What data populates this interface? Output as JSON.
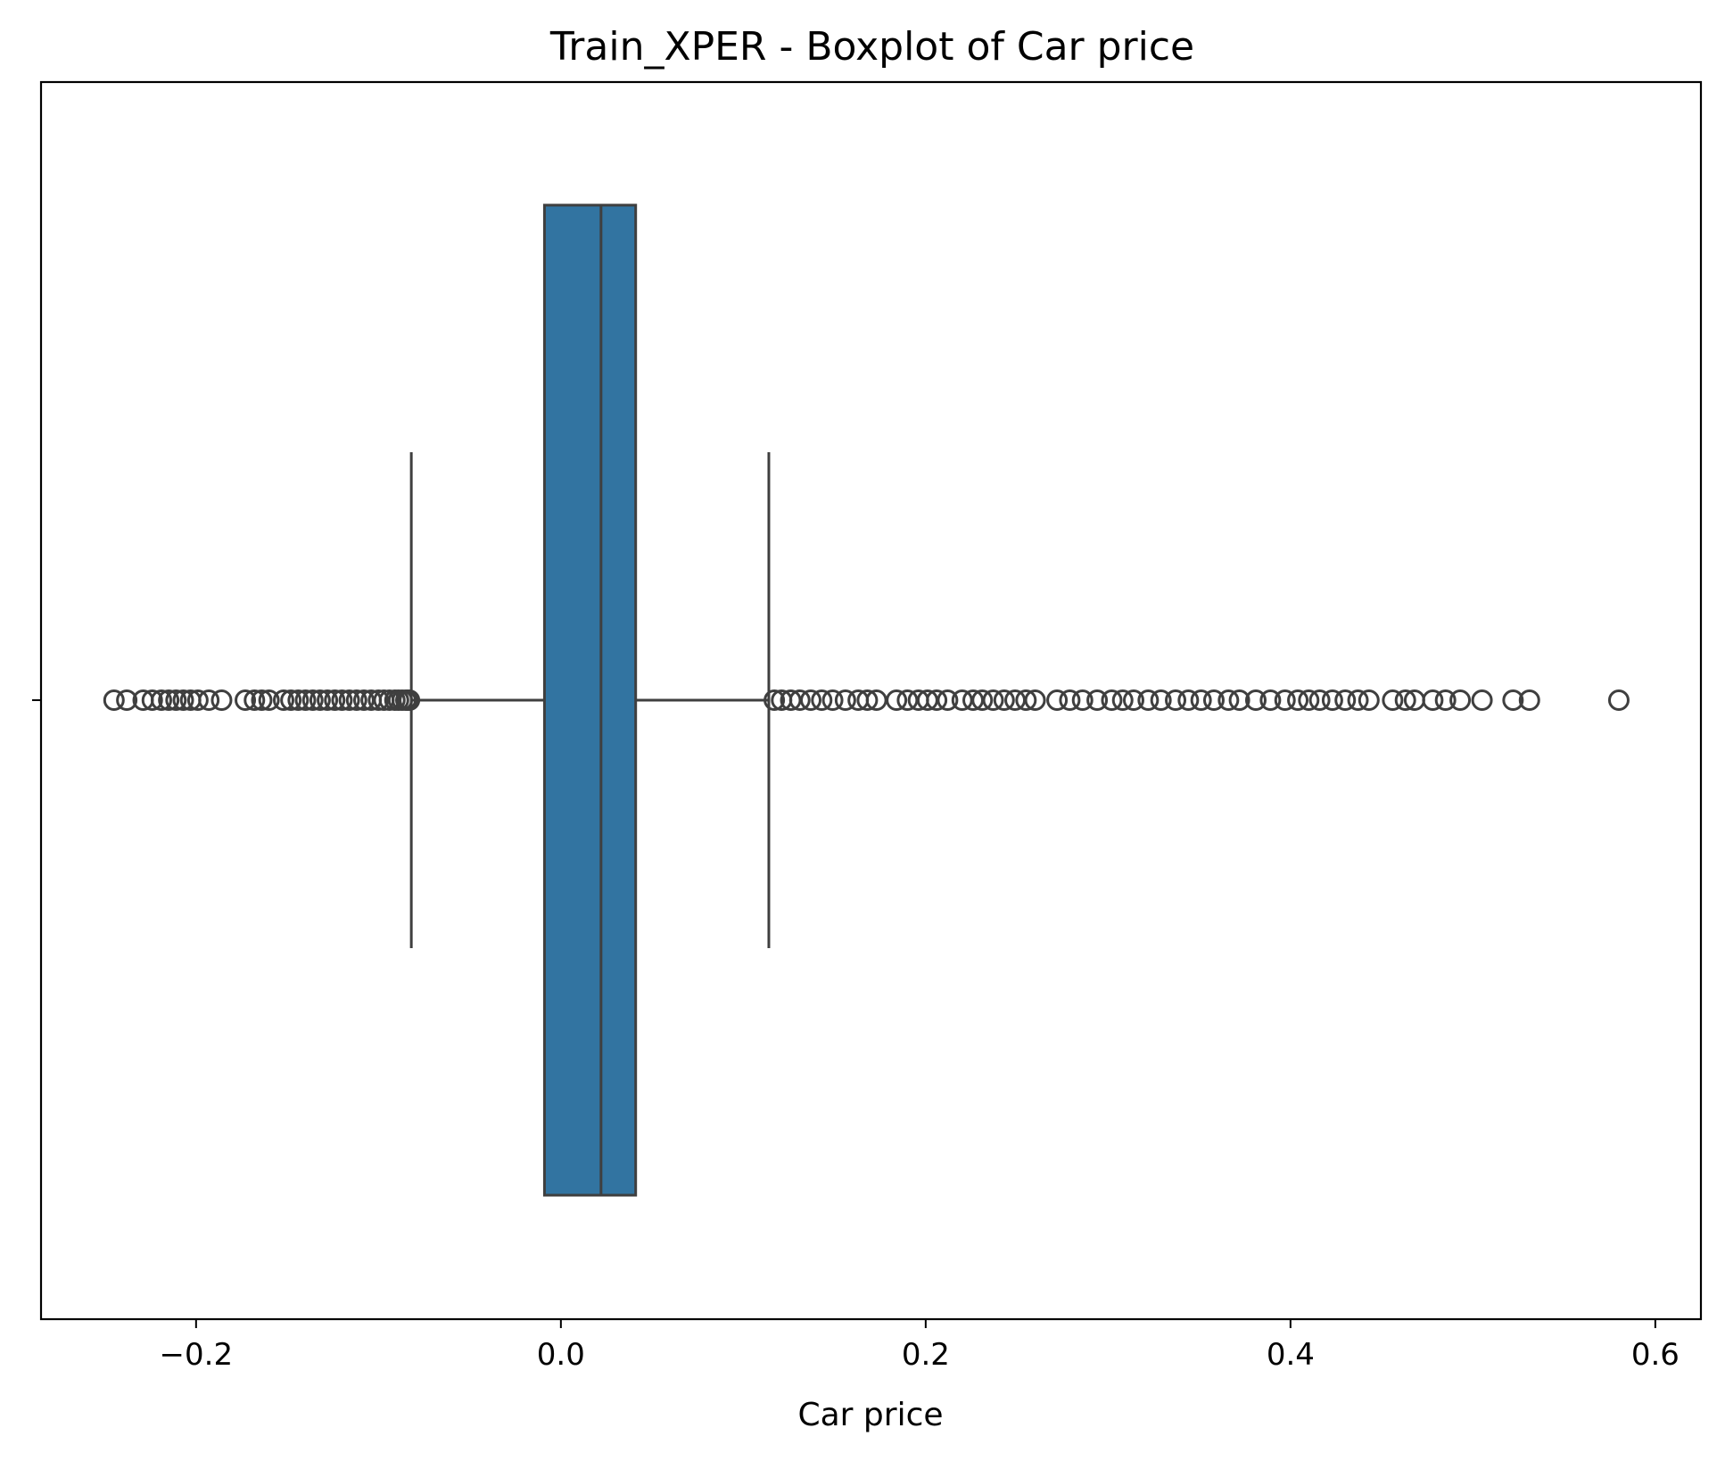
{
  "chart_data": {
    "type": "box",
    "title": "Train_XPER - Boxplot of Car price",
    "xlabel": "Car price",
    "ylabel": "",
    "xlim": [
      -0.285,
      0.625
    ],
    "x_ticks": [
      -0.2,
      0.0,
      0.2,
      0.4,
      0.6
    ],
    "x_tick_labels": [
      "−0.2",
      "0.0",
      "0.2",
      "0.4",
      "0.6"
    ],
    "grid": false,
    "orientation": "horizontal",
    "box": {
      "whisker_low": -0.082,
      "q1": -0.009,
      "median": 0.022,
      "q3": 0.041,
      "whisker_high": 0.114
    },
    "outliers": [
      -0.245,
      -0.238,
      -0.229,
      -0.224,
      -0.219,
      -0.215,
      -0.211,
      -0.207,
      -0.203,
      -0.199,
      -0.193,
      -0.186,
      -0.173,
      -0.168,
      -0.164,
      -0.16,
      -0.152,
      -0.148,
      -0.144,
      -0.14,
      -0.136,
      -0.132,
      -0.128,
      -0.124,
      -0.12,
      -0.116,
      -0.112,
      -0.108,
      -0.104,
      -0.1,
      -0.097,
      -0.094,
      -0.091,
      -0.089,
      -0.087,
      -0.085,
      -0.084,
      -0.083,
      0.117,
      0.121,
      0.126,
      0.131,
      0.137,
      0.143,
      0.149,
      0.156,
      0.163,
      0.168,
      0.173,
      0.184,
      0.19,
      0.196,
      0.201,
      0.206,
      0.212,
      0.22,
      0.226,
      0.231,
      0.237,
      0.243,
      0.249,
      0.255,
      0.26,
      0.272,
      0.279,
      0.286,
      0.294,
      0.302,
      0.308,
      0.314,
      0.322,
      0.329,
      0.337,
      0.344,
      0.351,
      0.358,
      0.366,
      0.372,
      0.381,
      0.389,
      0.397,
      0.404,
      0.41,
      0.416,
      0.423,
      0.43,
      0.437,
      0.443,
      0.456,
      0.463,
      0.468,
      0.478,
      0.485,
      0.493,
      0.505,
      0.522,
      0.531,
      0.58
    ],
    "colors": {
      "box_fill": "#3274a1",
      "line": "#3f3f3f",
      "frame": "#000000"
    }
  }
}
